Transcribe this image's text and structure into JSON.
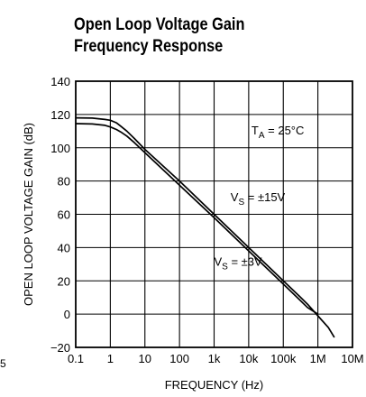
{
  "title": {
    "line1": "Open Loop Voltage Gain",
    "line2": "Frequency Response"
  },
  "margin_mark": "5",
  "chart_data": {
    "type": "line",
    "title": "Open Loop Voltage Gain Frequency Response",
    "xlabel": "FREQUENCY (Hz)",
    "ylabel": "OPEN LOOP VOLTAGE GAIN (dB)",
    "x_scale": "log",
    "xlim": [
      0.1,
      10000000
    ],
    "ylim": [
      -20,
      140
    ],
    "grid": true,
    "x_ticks": [
      0.1,
      1,
      10,
      100,
      1000,
      10000,
      100000,
      1000000,
      10000000
    ],
    "x_tick_labels": [
      "0.1",
      "1",
      "10",
      "100",
      "1k",
      "10k",
      "100k",
      "1M",
      "10M"
    ],
    "y_ticks": [
      -20,
      0,
      20,
      40,
      60,
      80,
      100,
      120,
      140
    ],
    "y_tick_labels": [
      "−20",
      "0",
      "20",
      "40",
      "60",
      "80",
      "100",
      "120",
      "140"
    ],
    "annotation": {
      "prefix": "T",
      "sub": "A",
      "suffix": " = 25°C"
    },
    "series": [
      {
        "label_main": "V",
        "label_sub": "S",
        "label_value": " = ±15V",
        "points": [
          [
            0.1,
            118
          ],
          [
            0.3,
            117.8
          ],
          [
            0.7,
            117
          ],
          [
            1,
            116.5
          ],
          [
            1.5,
            115
          ],
          [
            2,
            113
          ],
          [
            3,
            110
          ],
          [
            5,
            105.5
          ],
          [
            10,
            99
          ],
          [
            100,
            80
          ],
          [
            1000,
            60
          ],
          [
            10000,
            40
          ],
          [
            100000,
            20
          ],
          [
            300000,
            10.5
          ],
          [
            500000,
            6
          ],
          [
            1000000,
            -1
          ],
          [
            2000000,
            -8
          ],
          [
            3000000,
            -14
          ]
        ]
      },
      {
        "label_main": "V",
        "label_sub": "S",
        "label_value": " = ±3V",
        "points": [
          [
            0.1,
            114.5
          ],
          [
            0.3,
            114.3
          ],
          [
            0.7,
            113.5
          ],
          [
            1,
            112.5
          ],
          [
            1.5,
            111
          ],
          [
            2,
            109.5
          ],
          [
            3,
            107
          ],
          [
            5,
            103
          ],
          [
            10,
            97
          ],
          [
            100,
            77.5
          ],
          [
            1000,
            58
          ],
          [
            10000,
            38
          ],
          [
            100000,
            18
          ],
          [
            300000,
            8.5
          ],
          [
            500000,
            4
          ],
          [
            1000000,
            0
          ]
        ]
      }
    ]
  }
}
